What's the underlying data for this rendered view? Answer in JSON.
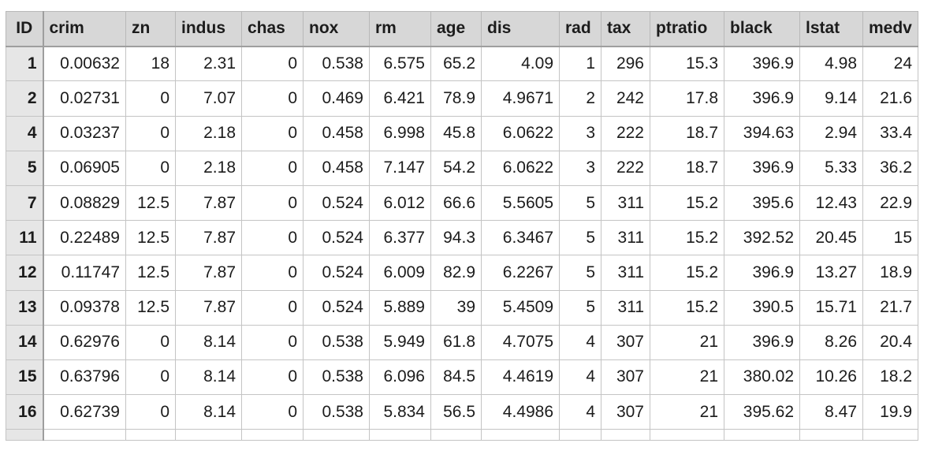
{
  "table": {
    "columns": [
      "ID",
      "crim",
      "zn",
      "indus",
      "chas",
      "nox",
      "rm",
      "age",
      "dis",
      "rad",
      "tax",
      "ptratio",
      "black",
      "lstat",
      "medv"
    ],
    "rows": [
      [
        "1",
        "0.00632",
        "18",
        "2.31",
        "0",
        "0.538",
        "6.575",
        "65.2",
        "4.09",
        "1",
        "296",
        "15.3",
        "396.9",
        "4.98",
        "24"
      ],
      [
        "2",
        "0.02731",
        "0",
        "7.07",
        "0",
        "0.469",
        "6.421",
        "78.9",
        "4.9671",
        "2",
        "242",
        "17.8",
        "396.9",
        "9.14",
        "21.6"
      ],
      [
        "4",
        "0.03237",
        "0",
        "2.18",
        "0",
        "0.458",
        "6.998",
        "45.8",
        "6.0622",
        "3",
        "222",
        "18.7",
        "394.63",
        "2.94",
        "33.4"
      ],
      [
        "5",
        "0.06905",
        "0",
        "2.18",
        "0",
        "0.458",
        "7.147",
        "54.2",
        "6.0622",
        "3",
        "222",
        "18.7",
        "396.9",
        "5.33",
        "36.2"
      ],
      [
        "7",
        "0.08829",
        "12.5",
        "7.87",
        "0",
        "0.524",
        "6.012",
        "66.6",
        "5.5605",
        "5",
        "311",
        "15.2",
        "395.6",
        "12.43",
        "22.9"
      ],
      [
        "11",
        "0.22489",
        "12.5",
        "7.87",
        "0",
        "0.524",
        "6.377",
        "94.3",
        "6.3467",
        "5",
        "311",
        "15.2",
        "392.52",
        "20.45",
        "15"
      ],
      [
        "12",
        "0.11747",
        "12.5",
        "7.87",
        "0",
        "0.524",
        "6.009",
        "82.9",
        "6.2267",
        "5",
        "311",
        "15.2",
        "396.9",
        "13.27",
        "18.9"
      ],
      [
        "13",
        "0.09378",
        "12.5",
        "7.87",
        "0",
        "0.524",
        "5.889",
        "39",
        "5.4509",
        "5",
        "311",
        "15.2",
        "390.5",
        "15.71",
        "21.7"
      ],
      [
        "14",
        "0.62976",
        "0",
        "8.14",
        "0",
        "0.538",
        "5.949",
        "61.8",
        "4.7075",
        "4",
        "307",
        "21",
        "396.9",
        "8.26",
        "20.4"
      ],
      [
        "15",
        "0.63796",
        "0",
        "8.14",
        "0",
        "0.538",
        "6.096",
        "84.5",
        "4.4619",
        "4",
        "307",
        "21",
        "380.02",
        "10.26",
        "18.2"
      ],
      [
        "16",
        "0.62739",
        "0",
        "8.14",
        "0",
        "0.538",
        "5.834",
        "56.5",
        "4.4986",
        "4",
        "307",
        "21",
        "395.62",
        "8.47",
        "19.9"
      ]
    ]
  }
}
